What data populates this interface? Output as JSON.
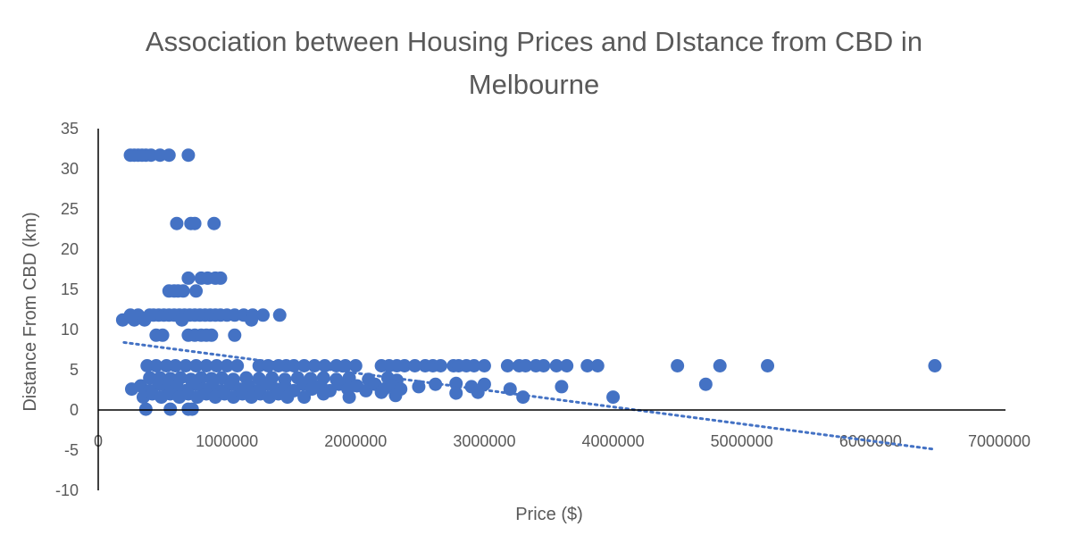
{
  "chart_data": {
    "type": "scatter",
    "title_line1": "Association between Housing Prices and DIstance from CBD in",
    "title_line2": "Melbourne",
    "xlabel": "Price ($)",
    "ylabel": "Distance From CBD (km)",
    "xlim": [
      0,
      7000000
    ],
    "ylim": [
      -10,
      35
    ],
    "x_ticks": [
      0,
      1000000,
      2000000,
      3000000,
      4000000,
      5000000,
      6000000,
      7000000
    ],
    "y_ticks": [
      35,
      30,
      25,
      20,
      15,
      10,
      5,
      0,
      -5,
      -10
    ],
    "grid": false,
    "legend": "none",
    "marker_color": "#4472C4",
    "trendline": {
      "type": "linear",
      "style": "dotted",
      "x": [
        200000,
        6500000
      ],
      "y": [
        8.4,
        -4.9
      ]
    },
    "series": [
      {
        "points": [
          [
            250000,
            31.7
          ],
          [
            280000,
            31.7
          ],
          [
            310000,
            31.7
          ],
          [
            340000,
            31.7
          ],
          [
            370000,
            31.7
          ],
          [
            410000,
            31.7
          ],
          [
            480000,
            31.7
          ],
          [
            550000,
            31.7
          ],
          [
            700000,
            31.7
          ],
          [
            610000,
            23.2
          ],
          [
            720000,
            23.2
          ],
          [
            750000,
            23.2
          ],
          [
            900000,
            23.2
          ],
          [
            700000,
            16.4
          ],
          [
            800000,
            16.4
          ],
          [
            850000,
            16.4
          ],
          [
            910000,
            16.4
          ],
          [
            950000,
            16.4
          ],
          [
            550000,
            14.8
          ],
          [
            590000,
            14.8
          ],
          [
            620000,
            14.8
          ],
          [
            660000,
            14.8
          ],
          [
            760000,
            14.8
          ],
          [
            190000,
            11.2
          ],
          [
            250000,
            11.8
          ],
          [
            280000,
            11.2
          ],
          [
            310000,
            11.8
          ],
          [
            360000,
            11.2
          ],
          [
            400000,
            11.8
          ],
          [
            430000,
            11.8
          ],
          [
            470000,
            11.8
          ],
          [
            510000,
            11.8
          ],
          [
            550000,
            11.8
          ],
          [
            590000,
            11.8
          ],
          [
            630000,
            11.8
          ],
          [
            670000,
            11.8
          ],
          [
            710000,
            11.8
          ],
          [
            750000,
            11.8
          ],
          [
            790000,
            11.8
          ],
          [
            830000,
            11.8
          ],
          [
            870000,
            11.8
          ],
          [
            910000,
            11.8
          ],
          [
            950000,
            11.8
          ],
          [
            1000000,
            11.8
          ],
          [
            1060000,
            11.8
          ],
          [
            1130000,
            11.8
          ],
          [
            1200000,
            11.8
          ],
          [
            1280000,
            11.8
          ],
          [
            1410000,
            11.8
          ],
          [
            1190000,
            11.2
          ],
          [
            650000,
            11.2
          ],
          [
            450000,
            9.3
          ],
          [
            500000,
            9.3
          ],
          [
            700000,
            9.3
          ],
          [
            750000,
            9.3
          ],
          [
            800000,
            9.3
          ],
          [
            840000,
            9.3
          ],
          [
            880000,
            9.3
          ],
          [
            1060000,
            9.3
          ],
          [
            380000,
            5.5
          ],
          [
            450000,
            5.5
          ],
          [
            530000,
            5.5
          ],
          [
            600000,
            5.5
          ],
          [
            680000,
            5.5
          ],
          [
            760000,
            5.5
          ],
          [
            840000,
            5.5
          ],
          [
            920000,
            5.5
          ],
          [
            1000000,
            5.5
          ],
          [
            1080000,
            5.5
          ],
          [
            1250000,
            5.5
          ],
          [
            1320000,
            5.5
          ],
          [
            1400000,
            5.5
          ],
          [
            1460000,
            5.5
          ],
          [
            1520000,
            5.5
          ],
          [
            1600000,
            5.5
          ],
          [
            1680000,
            5.5
          ],
          [
            1760000,
            5.5
          ],
          [
            1850000,
            5.5
          ],
          [
            1920000,
            5.5
          ],
          [
            2000000,
            5.5
          ],
          [
            2200000,
            5.5
          ],
          [
            2260000,
            5.5
          ],
          [
            2320000,
            5.5
          ],
          [
            2380000,
            5.5
          ],
          [
            2460000,
            5.5
          ],
          [
            2540000,
            5.5
          ],
          [
            2600000,
            5.5
          ],
          [
            2660000,
            5.5
          ],
          [
            2760000,
            5.5
          ],
          [
            2800000,
            5.5
          ],
          [
            2860000,
            5.5
          ],
          [
            2920000,
            5.5
          ],
          [
            3000000,
            5.5
          ],
          [
            3180000,
            5.5
          ],
          [
            3270000,
            5.5
          ],
          [
            3320000,
            5.5
          ],
          [
            3400000,
            5.5
          ],
          [
            3460000,
            5.5
          ],
          [
            3560000,
            5.5
          ],
          [
            3640000,
            5.5
          ],
          [
            3800000,
            5.5
          ],
          [
            3880000,
            5.5
          ],
          [
            4500000,
            5.5
          ],
          [
            4830000,
            5.5
          ],
          [
            5200000,
            5.5
          ],
          [
            6500000,
            5.5
          ],
          [
            400000,
            4.0
          ],
          [
            480000,
            4.0
          ],
          [
            560000,
            3.9
          ],
          [
            640000,
            4.0
          ],
          [
            720000,
            3.8
          ],
          [
            800000,
            4.0
          ],
          [
            880000,
            3.9
          ],
          [
            960000,
            4.0
          ],
          [
            1050000,
            3.8
          ],
          [
            1150000,
            4.0
          ],
          [
            1250000,
            3.9
          ],
          [
            1350000,
            4.0
          ],
          [
            1450000,
            3.8
          ],
          [
            1550000,
            4.0
          ],
          [
            1650000,
            3.9
          ],
          [
            1750000,
            4.0
          ],
          [
            1850000,
            3.8
          ],
          [
            1950000,
            4.0
          ],
          [
            2100000,
            3.8
          ],
          [
            2250000,
            4.0
          ],
          [
            2320000,
            3.7
          ],
          [
            260000,
            2.6
          ],
          [
            330000,
            3.0
          ],
          [
            400000,
            2.4
          ],
          [
            470000,
            3.2
          ],
          [
            540000,
            2.6
          ],
          [
            610000,
            3.0
          ],
          [
            680000,
            2.4
          ],
          [
            750000,
            3.2
          ],
          [
            820000,
            2.6
          ],
          [
            890000,
            3.0
          ],
          [
            960000,
            2.4
          ],
          [
            1030000,
            3.2
          ],
          [
            1100000,
            2.6
          ],
          [
            1170000,
            3.0
          ],
          [
            1240000,
            2.4
          ],
          [
            1310000,
            3.2
          ],
          [
            1380000,
            2.6
          ],
          [
            1450000,
            3.0
          ],
          [
            1520000,
            2.4
          ],
          [
            1590000,
            3.2
          ],
          [
            1660000,
            2.6
          ],
          [
            1730000,
            3.0
          ],
          [
            1800000,
            2.4
          ],
          [
            1870000,
            3.2
          ],
          [
            1940000,
            2.6
          ],
          [
            2010000,
            3.0
          ],
          [
            2080000,
            2.4
          ],
          [
            2150000,
            3.2
          ],
          [
            2220000,
            2.6
          ],
          [
            2280000,
            3.0
          ],
          [
            2350000,
            2.6
          ],
          [
            2490000,
            2.9
          ],
          [
            2620000,
            3.2
          ],
          [
            2780000,
            3.3
          ],
          [
            2900000,
            2.9
          ],
          [
            3000000,
            3.2
          ],
          [
            3200000,
            2.6
          ],
          [
            3600000,
            2.9
          ],
          [
            4720000,
            3.2
          ],
          [
            350000,
            1.6
          ],
          [
            420000,
            2.0
          ],
          [
            490000,
            1.6
          ],
          [
            560000,
            2.0
          ],
          [
            630000,
            1.6
          ],
          [
            700000,
            2.0
          ],
          [
            770000,
            1.6
          ],
          [
            840000,
            2.0
          ],
          [
            910000,
            1.6
          ],
          [
            980000,
            2.0
          ],
          [
            1050000,
            1.6
          ],
          [
            1120000,
            2.0
          ],
          [
            1190000,
            1.6
          ],
          [
            1260000,
            2.0
          ],
          [
            1330000,
            1.6
          ],
          [
            1400000,
            2.0
          ],
          [
            1470000,
            1.6
          ],
          [
            1600000,
            1.6
          ],
          [
            1750000,
            2.0
          ],
          [
            1950000,
            1.6
          ],
          [
            2200000,
            2.2
          ],
          [
            2310000,
            1.8
          ],
          [
            2780000,
            2.1
          ],
          [
            2950000,
            2.2
          ],
          [
            3300000,
            1.6
          ],
          [
            4000000,
            1.6
          ],
          [
            370000,
            0.1
          ],
          [
            560000,
            0.1
          ],
          [
            700000,
            0.1
          ],
          [
            730000,
            0.1
          ]
        ]
      }
    ]
  }
}
